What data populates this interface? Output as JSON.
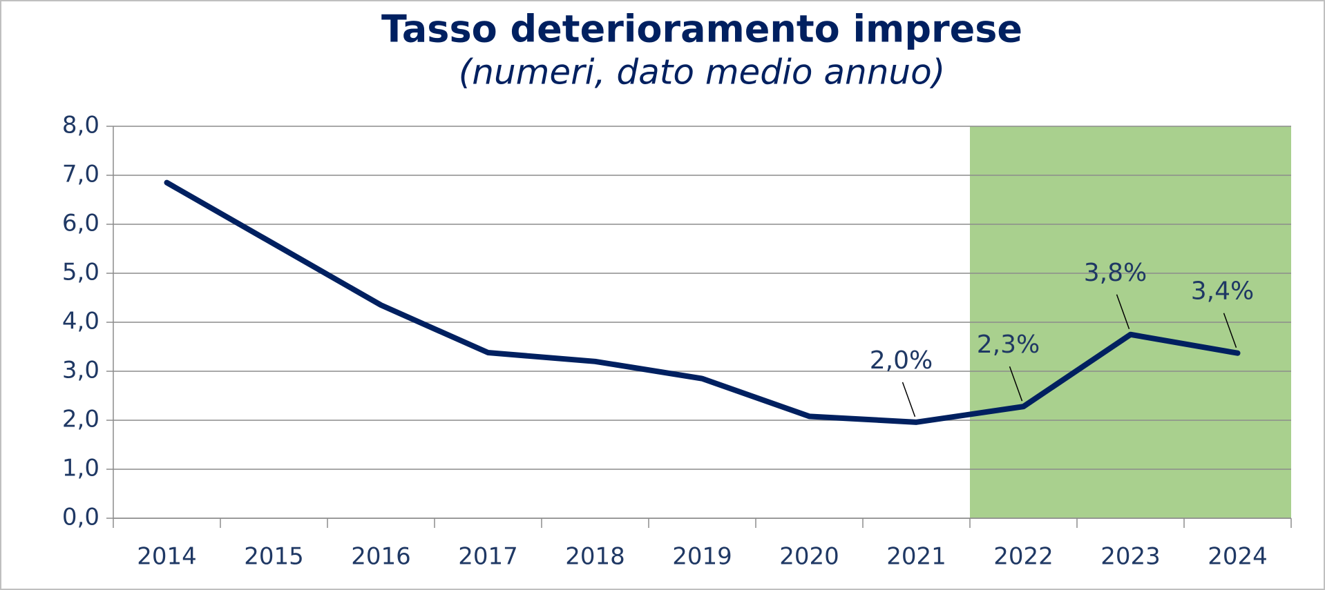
{
  "chart_data": {
    "type": "line",
    "title": "Tasso deterioramento imprese",
    "subtitle": "(numeri, dato medio annuo)",
    "categories": [
      "2014",
      "2015",
      "2016",
      "2017",
      "2018",
      "2019",
      "2020",
      "2021",
      "2022",
      "2023",
      "2024"
    ],
    "series": [
      {
        "name": "Tasso deterioramento imprese",
        "color": "#002060",
        "values": [
          6.85,
          5.6,
          4.35,
          3.38,
          3.2,
          2.85,
          2.08,
          1.96,
          2.28,
          3.75,
          3.37
        ],
        "value_labels": [
          null,
          null,
          null,
          null,
          null,
          null,
          null,
          "2,0%",
          "2,3%",
          "3,8%",
          "3,4%"
        ]
      }
    ],
    "ylim": [
      0,
      8
    ],
    "yticks": [
      {
        "value": 0,
        "label": "0,0"
      },
      {
        "value": 1,
        "label": "1,0"
      },
      {
        "value": 2,
        "label": "2,0"
      },
      {
        "value": 3,
        "label": "3,0"
      },
      {
        "value": 4,
        "label": "4,0"
      },
      {
        "value": 5,
        "label": "5,0"
      },
      {
        "value": 6,
        "label": "6,0"
      },
      {
        "value": 7,
        "label": "7,0"
      },
      {
        "value": 8,
        "label": "8,0"
      }
    ],
    "grid": true,
    "highlight": {
      "from": "2022",
      "to": "2024",
      "color": "#a9d08e"
    }
  }
}
